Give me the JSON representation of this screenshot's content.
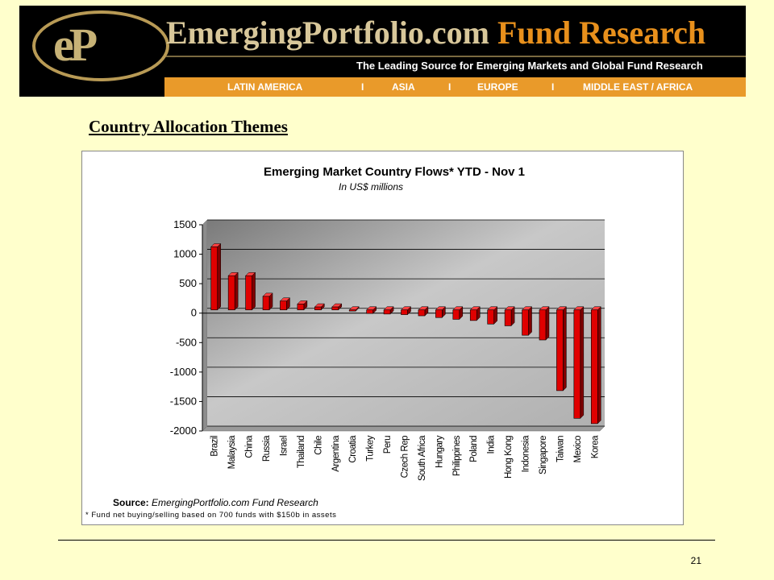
{
  "banner": {
    "logo_text": "eP",
    "title_part1": "EmergingPortfolio.com",
    "title_part2": "Fund Research",
    "tagline": "The Leading Source for Emerging Markets and Global Fund Research",
    "regions": [
      "LATIN AMERICA",
      "ASIA",
      "EUROPE",
      "MIDDLE EAST / AFRICA"
    ],
    "separator": "I"
  },
  "heading": "Country Allocation Themes",
  "chart_data": {
    "type": "bar",
    "title": "Emerging Market Country Flows* YTD - Nov 1",
    "subtitle": "In US$ millions",
    "categories": [
      "Brazil",
      "Malaysia",
      "China",
      "Russia",
      "Israel",
      "Thailand",
      "Chile",
      "Argentina",
      "Croatia",
      "Turkey",
      "Peru",
      "Czech Rep",
      "South Africa",
      "Hungary",
      "Philippines",
      "Poland",
      "India",
      "Hong Kong",
      "Indonesia",
      "Singapore",
      "Taiwan",
      "Mexico",
      "Korea"
    ],
    "values": [
      1070,
      580,
      580,
      230,
      150,
      100,
      50,
      50,
      -20,
      -60,
      -70,
      -80,
      -100,
      -130,
      -160,
      -180,
      -240,
      -270,
      -430,
      -510,
      -1370,
      -1840,
      -1930
    ],
    "ylim": [
      -2000,
      1500
    ],
    "yticks": [
      1500,
      1000,
      500,
      0,
      -500,
      -1000,
      -1500,
      -2000
    ],
    "ytick_labels": [
      "1500",
      "1000",
      "500",
      "0",
      "-500",
      "-1000",
      "-1500",
      "-2000"
    ],
    "grid": true,
    "legend": "none",
    "bar_color": "#e00000",
    "plot_background": "#b8b8b8",
    "source_label": "Source:",
    "source_text": "EmergingPortfolio.com Fund Research",
    "footnote": "* Fund net buying/selling based on 700 funds with $150b in assets"
  },
  "footer": {
    "page_number": "21"
  }
}
